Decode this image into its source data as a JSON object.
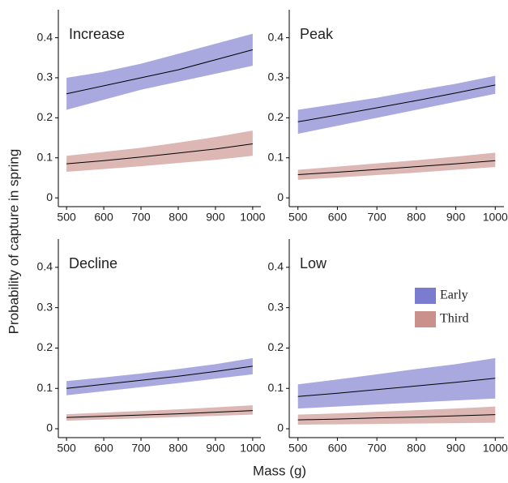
{
  "ylabel": "Probability of capture in spring",
  "xlabel": "Mass (g)",
  "chart_data": [
    {
      "type": "line",
      "title": "Increase",
      "x": [
        500,
        600,
        700,
        800,
        900,
        1000
      ],
      "xlim": [
        478,
        1022
      ],
      "xticks": [
        500,
        600,
        700,
        800,
        900,
        1000
      ],
      "ylim": [
        -0.022,
        0.47
      ],
      "yticks": [
        0.0,
        0.1,
        0.2,
        0.3,
        0.4
      ],
      "series": [
        {
          "name": "Early",
          "color": "#7b7bcf",
          "values": [
            0.26,
            0.28,
            0.3,
            0.32,
            0.345,
            0.37
          ],
          "lower": [
            0.22,
            0.245,
            0.27,
            0.29,
            0.31,
            0.33
          ],
          "upper": [
            0.3,
            0.315,
            0.335,
            0.36,
            0.385,
            0.41
          ]
        },
        {
          "name": "Third",
          "color": "#c9908c",
          "values": [
            0.085,
            0.093,
            0.102,
            0.112,
            0.122,
            0.135
          ],
          "lower": [
            0.065,
            0.072,
            0.079,
            0.087,
            0.095,
            0.105
          ],
          "upper": [
            0.105,
            0.115,
            0.125,
            0.138,
            0.152,
            0.168
          ]
        }
      ]
    },
    {
      "type": "line",
      "title": "Peak",
      "x": [
        500,
        600,
        700,
        800,
        900,
        1000
      ],
      "xlim": [
        478,
        1022
      ],
      "xticks": [
        500,
        600,
        700,
        800,
        900,
        1000
      ],
      "ylim": [
        -0.022,
        0.47
      ],
      "yticks": [
        0.0,
        0.1,
        0.2,
        0.3,
        0.4
      ],
      "series": [
        {
          "name": "Early",
          "color": "#7b7bcf",
          "values": [
            0.19,
            0.207,
            0.225,
            0.243,
            0.262,
            0.282
          ],
          "lower": [
            0.16,
            0.18,
            0.2,
            0.22,
            0.24,
            0.26
          ],
          "upper": [
            0.22,
            0.235,
            0.25,
            0.268,
            0.285,
            0.305
          ]
        },
        {
          "name": "Third",
          "color": "#c9908c",
          "values": [
            0.058,
            0.064,
            0.071,
            0.078,
            0.085,
            0.093
          ],
          "lower": [
            0.045,
            0.051,
            0.057,
            0.063,
            0.07,
            0.077
          ],
          "upper": [
            0.07,
            0.078,
            0.086,
            0.094,
            0.103,
            0.113
          ]
        }
      ]
    },
    {
      "type": "line",
      "title": "Decline",
      "x": [
        500,
        600,
        700,
        800,
        900,
        1000
      ],
      "xlim": [
        478,
        1022
      ],
      "xticks": [
        500,
        600,
        700,
        800,
        900,
        1000
      ],
      "ylim": [
        -0.022,
        0.47
      ],
      "yticks": [
        0.0,
        0.1,
        0.2,
        0.3,
        0.4
      ],
      "series": [
        {
          "name": "Early",
          "color": "#7b7bcf",
          "values": [
            0.1,
            0.11,
            0.12,
            0.13,
            0.142,
            0.155
          ],
          "lower": [
            0.083,
            0.093,
            0.103,
            0.113,
            0.124,
            0.135
          ],
          "upper": [
            0.118,
            0.127,
            0.137,
            0.148,
            0.16,
            0.175
          ]
        },
        {
          "name": "Third",
          "color": "#c9908c",
          "values": [
            0.028,
            0.031,
            0.034,
            0.037,
            0.041,
            0.045
          ],
          "lower": [
            0.02,
            0.023,
            0.026,
            0.029,
            0.032,
            0.035
          ],
          "upper": [
            0.036,
            0.04,
            0.044,
            0.048,
            0.053,
            0.058
          ]
        }
      ]
    },
    {
      "type": "line",
      "title": "Low",
      "x": [
        500,
        600,
        700,
        800,
        900,
        1000
      ],
      "xlim": [
        478,
        1022
      ],
      "xticks": [
        500,
        600,
        700,
        800,
        900,
        1000
      ],
      "ylim": [
        -0.022,
        0.47
      ],
      "yticks": [
        0.0,
        0.1,
        0.2,
        0.3,
        0.4
      ],
      "legend": "right",
      "series": [
        {
          "name": "Early",
          "color": "#7b7bcf",
          "values": [
            0.08,
            0.088,
            0.097,
            0.106,
            0.115,
            0.125
          ],
          "lower": [
            0.05,
            0.055,
            0.06,
            0.065,
            0.07,
            0.075
          ],
          "upper": [
            0.11,
            0.122,
            0.135,
            0.148,
            0.16,
            0.175
          ]
        },
        {
          "name": "Third",
          "color": "#c9908c",
          "values": [
            0.022,
            0.024,
            0.027,
            0.029,
            0.032,
            0.035
          ],
          "lower": [
            0.01,
            0.011,
            0.012,
            0.013,
            0.014,
            0.015
          ],
          "upper": [
            0.035,
            0.038,
            0.042,
            0.046,
            0.05,
            0.055
          ]
        }
      ]
    }
  ]
}
